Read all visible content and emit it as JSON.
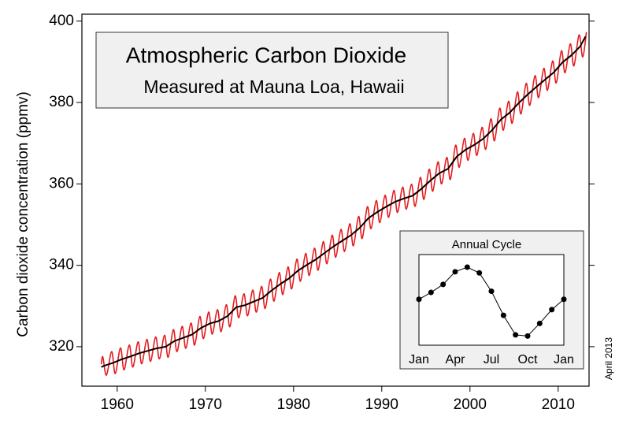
{
  "chart_data": [
    {
      "type": "line",
      "title": "Atmospheric Carbon Dioxide",
      "subtitle": "Measured at Mauna Loa, Hawaii",
      "y_label": "Carbon dioxide concentration (ppmv)",
      "annotation": "April 2013",
      "xlim": [
        1956,
        2013.5
      ],
      "ylim": [
        310.3,
        401.7
      ],
      "xticks": [
        1960,
        1970,
        1980,
        1990,
        2000,
        2010
      ],
      "yticks": [
        320,
        340,
        360,
        380,
        400
      ],
      "series": [
        {
          "color": "#e41a1c",
          "smooth": true,
          "x": [
            1958.2,
            1958.37,
            1958.78,
            1959.37,
            1959.78,
            1960.37,
            1960.78,
            1961.37,
            1961.78,
            1962.37,
            1962.78,
            1963.37,
            1963.78,
            1964.37,
            1964.78,
            1965.37,
            1965.78,
            1966.37,
            1966.78,
            1967.37,
            1967.78,
            1968.37,
            1968.78,
            1969.37,
            1969.78,
            1970.37,
            1970.78,
            1971.37,
            1971.78,
            1972.37,
            1972.78,
            1973.37,
            1973.78,
            1974.37,
            1974.78,
            1975.37,
            1975.78,
            1976.37,
            1976.78,
            1977.37,
            1977.78,
            1978.37,
            1978.78,
            1979.37,
            1979.78,
            1980.37,
            1980.78,
            1981.37,
            1981.78,
            1982.37,
            1982.78,
            1983.37,
            1983.78,
            1984.37,
            1984.78,
            1985.37,
            1985.78,
            1986.37,
            1986.78,
            1987.37,
            1987.78,
            1988.37,
            1988.78,
            1989.37,
            1989.78,
            1990.37,
            1990.78,
            1991.37,
            1991.78,
            1992.37,
            1992.78,
            1993.37,
            1993.78,
            1994.37,
            1994.78,
            1995.37,
            1995.78,
            1996.37,
            1996.78,
            1997.37,
            1997.78,
            1998.37,
            1998.78,
            1999.37,
            1999.78,
            2000.37,
            2000.78,
            2001.37,
            2001.78,
            2002.37,
            2002.78,
            2003.37,
            2003.78,
            2004.37,
            2004.78,
            2005.37,
            2005.78,
            2006.37,
            2006.78,
            2007.37,
            2007.78,
            2008.37,
            2008.78,
            2009.37,
            2009.78,
            2010.37,
            2010.78,
            2011.37,
            2011.78,
            2012.37,
            2012.78,
            2013.2
          ],
          "values": [
            315.7,
            317.5,
            313.0,
            318.8,
            313.4,
            319.7,
            314.3,
            320.4,
            315.0,
            321.2,
            315.8,
            321.8,
            316.4,
            322.4,
            317.0,
            322.8,
            317.4,
            324.2,
            318.8,
            325.0,
            319.6,
            325.8,
            320.4,
            327.4,
            322.0,
            328.5,
            323.1,
            329.1,
            323.7,
            330.3,
            324.9,
            332.5,
            327.1,
            333.0,
            327.6,
            333.9,
            328.5,
            334.8,
            329.4,
            336.6,
            331.2,
            338.2,
            332.8,
            339.6,
            334.2,
            341.5,
            336.1,
            342.9,
            337.5,
            344.2,
            338.8,
            345.8,
            340.4,
            347.4,
            342.0,
            348.8,
            343.4,
            350.2,
            344.8,
            352.0,
            346.6,
            354.4,
            349.0,
            355.9,
            350.5,
            357.2,
            351.8,
            358.4,
            353.0,
            359.2,
            353.8,
            359.9,
            354.5,
            361.6,
            356.2,
            363.6,
            358.2,
            365.4,
            360.0,
            366.5,
            361.1,
            369.5,
            364.1,
            371.2,
            365.8,
            372.4,
            367.0,
            373.9,
            368.5,
            376.0,
            370.6,
            378.6,
            373.2,
            380.3,
            374.9,
            382.6,
            377.2,
            384.7,
            379.3,
            386.6,
            381.2,
            388.4,
            383.0,
            390.2,
            384.8,
            392.7,
            387.3,
            394.4,
            389.0,
            396.6,
            391.2,
            397.3
          ]
        },
        {
          "color": "#000000",
          "smooth": false,
          "x": [
            1958.2,
            1958.5,
            1959.5,
            1960.5,
            1961.5,
            1962.5,
            1963.5,
            1964.5,
            1965.5,
            1966.5,
            1967.5,
            1968.5,
            1969.5,
            1970.5,
            1971.5,
            1972.5,
            1973.5,
            1974.5,
            1975.5,
            1976.5,
            1977.5,
            1978.5,
            1979.5,
            1980.5,
            1981.5,
            1982.5,
            1983.5,
            1984.5,
            1985.5,
            1986.5,
            1987.5,
            1988.5,
            1989.5,
            1990.5,
            1991.5,
            1992.5,
            1993.5,
            1994.5,
            1995.5,
            1996.5,
            1997.5,
            1998.5,
            1999.5,
            2000.5,
            2001.5,
            2002.5,
            2003.5,
            2004.5,
            2005.5,
            2006.5,
            2007.5,
            2008.5,
            2009.5,
            2010.5,
            2011.5,
            2012.5,
            2013.1
          ],
          "values": [
            315.0,
            315.3,
            316.0,
            316.9,
            317.6,
            318.4,
            319.0,
            319.6,
            320.0,
            321.4,
            322.2,
            323.0,
            324.6,
            325.7,
            326.3,
            327.5,
            329.7,
            330.2,
            331.1,
            332.0,
            333.8,
            335.4,
            336.8,
            338.7,
            340.1,
            341.4,
            343.0,
            344.6,
            346.0,
            347.4,
            349.2,
            351.6,
            353.1,
            354.4,
            355.6,
            356.4,
            357.1,
            358.8,
            360.8,
            362.6,
            363.7,
            366.7,
            368.4,
            369.6,
            371.1,
            373.2,
            375.8,
            377.5,
            379.8,
            381.9,
            383.8,
            385.6,
            387.4,
            389.9,
            391.6,
            393.8,
            396.2
          ]
        }
      ]
    },
    {
      "type": "line",
      "title": "Annual Cycle",
      "categories": [
        "Jan",
        null,
        null,
        "Apr",
        null,
        null,
        "Jul",
        null,
        null,
        "Oct",
        null,
        null,
        "Jan"
      ],
      "values": [
        0,
        0.6,
        1.3,
        2.4,
        2.8,
        2.3,
        0.7,
        -1.4,
        -3.1,
        -3.2,
        -2.1,
        -0.9,
        0
      ],
      "ylim": [
        -4,
        3.9
      ],
      "color": "#000000",
      "markers": true
    }
  ]
}
